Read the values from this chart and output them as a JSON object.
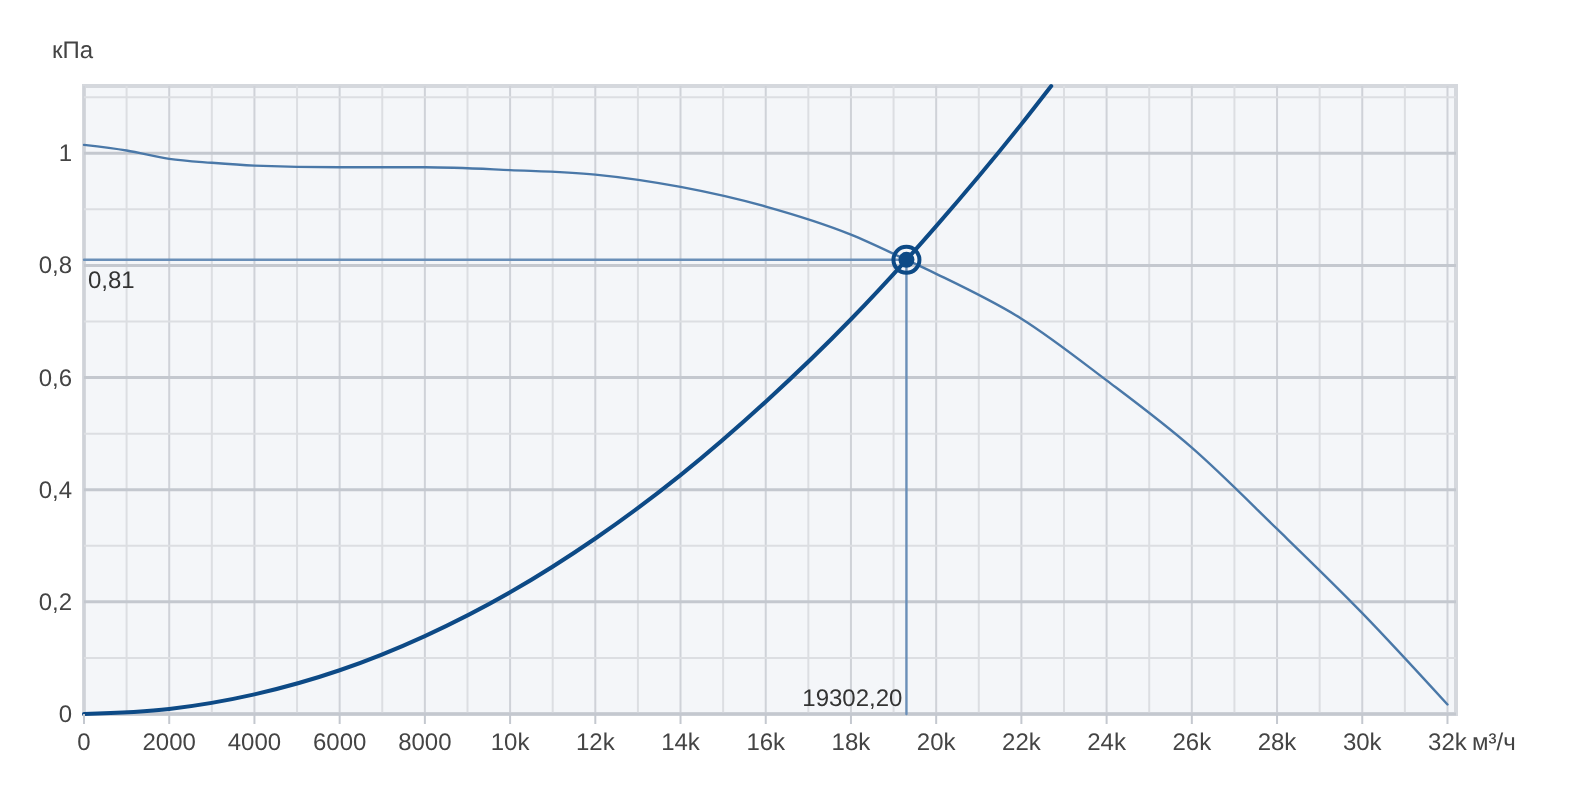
{
  "chart_data": {
    "type": "line",
    "xlabel": "м³/ч",
    "ylabel": "кПа",
    "xlim": [
      0,
      32200
    ],
    "ylim": [
      0,
      1.12
    ],
    "xticks": [
      0,
      {
        "value": 1000,
        "label": null
      },
      2000,
      {
        "value": 3000,
        "label": null
      },
      4000,
      {
        "value": 5000,
        "label": null
      },
      6000,
      {
        "value": 7000,
        "label": null
      },
      8000,
      {
        "value": 9000,
        "label": null
      },
      {
        "value": 10000,
        "label": "10k"
      },
      {
        "value": 11000,
        "label": null
      },
      {
        "value": 12000,
        "label": "12k"
      },
      {
        "value": 13000,
        "label": null
      },
      {
        "value": 14000,
        "label": "14k"
      },
      {
        "value": 15000,
        "label": null
      },
      {
        "value": 16000,
        "label": "16k"
      },
      {
        "value": 17000,
        "label": null
      },
      {
        "value": 18000,
        "label": "18k"
      },
      {
        "value": 19000,
        "label": null
      },
      {
        "value": 20000,
        "label": "20k"
      },
      {
        "value": 21000,
        "label": null
      },
      {
        "value": 22000,
        "label": "22k"
      },
      {
        "value": 23000,
        "label": null
      },
      {
        "value": 24000,
        "label": "24k"
      },
      {
        "value": 25000,
        "label": null
      },
      {
        "value": 26000,
        "label": "26k"
      },
      {
        "value": 27000,
        "label": null
      },
      {
        "value": 28000,
        "label": "28k"
      },
      {
        "value": 29000,
        "label": null
      },
      {
        "value": 30000,
        "label": "30k"
      },
      {
        "value": 31000,
        "label": null
      },
      {
        "value": 32000,
        "label": "32k"
      }
    ],
    "yticks": [
      0,
      {
        "value": 0.1,
        "label": null
      },
      {
        "value": 0.2,
        "label": "0,2"
      },
      {
        "value": 0.3,
        "label": null
      },
      {
        "value": 0.4,
        "label": "0,4"
      },
      {
        "value": 0.5,
        "label": null
      },
      {
        "value": 0.6,
        "label": "0,6"
      },
      {
        "value": 0.7,
        "label": null
      },
      {
        "value": 0.8,
        "label": "0,8"
      },
      {
        "value": 0.9,
        "label": null
      },
      1,
      {
        "value": 1.1,
        "label": null
      }
    ],
    "grid": true,
    "marker": "none",
    "line_style": "solid",
    "series": [
      {
        "color": "#4a78a8",
        "x": [
          0,
          1000,
          2000,
          3000,
          4000,
          6000,
          8000,
          10000,
          12000,
          14000,
          16000,
          18000,
          19302.2,
          20000,
          22000,
          24000,
          26000,
          28000,
          30000,
          32000
        ],
        "values": [
          1.015,
          1.005,
          0.99,
          0.983,
          0.978,
          0.975,
          0.975,
          0.97,
          0.962,
          0.94,
          0.905,
          0.855,
          0.81,
          0.785,
          0.705,
          0.595,
          0.475,
          0.33,
          0.18,
          0.017
        ]
      },
      {
        "color": "#0d4a86",
        "x": [
          0,
          2000,
          4000,
          6000,
          8000,
          10000,
          12000,
          14000,
          16000,
          18000,
          19302.2,
          20000,
          22000,
          22700
        ],
        "values": [
          0,
          0.009,
          0.035,
          0.078,
          0.139,
          0.217,
          0.313,
          0.426,
          0.557,
          0.704,
          0.81,
          0.87,
          1.052,
          1.12
        ]
      },
      {
        "color": "#6a8fb8",
        "x": [
          0,
          19302.2,
          19302.2
        ],
        "values": [
          0.81,
          0.81,
          0
        ]
      },
      {
        "type": "scatter",
        "color": "#0d4a86",
        "marker": "circle",
        "x": [
          19302.2
        ],
        "values": [
          0.81
        ]
      }
    ],
    "annotations": [
      {
        "text": "0,81",
        "x": 0,
        "y": 0.81
      },
      {
        "text": "19302,20",
        "x": 19302.2,
        "y": 0
      }
    ]
  }
}
